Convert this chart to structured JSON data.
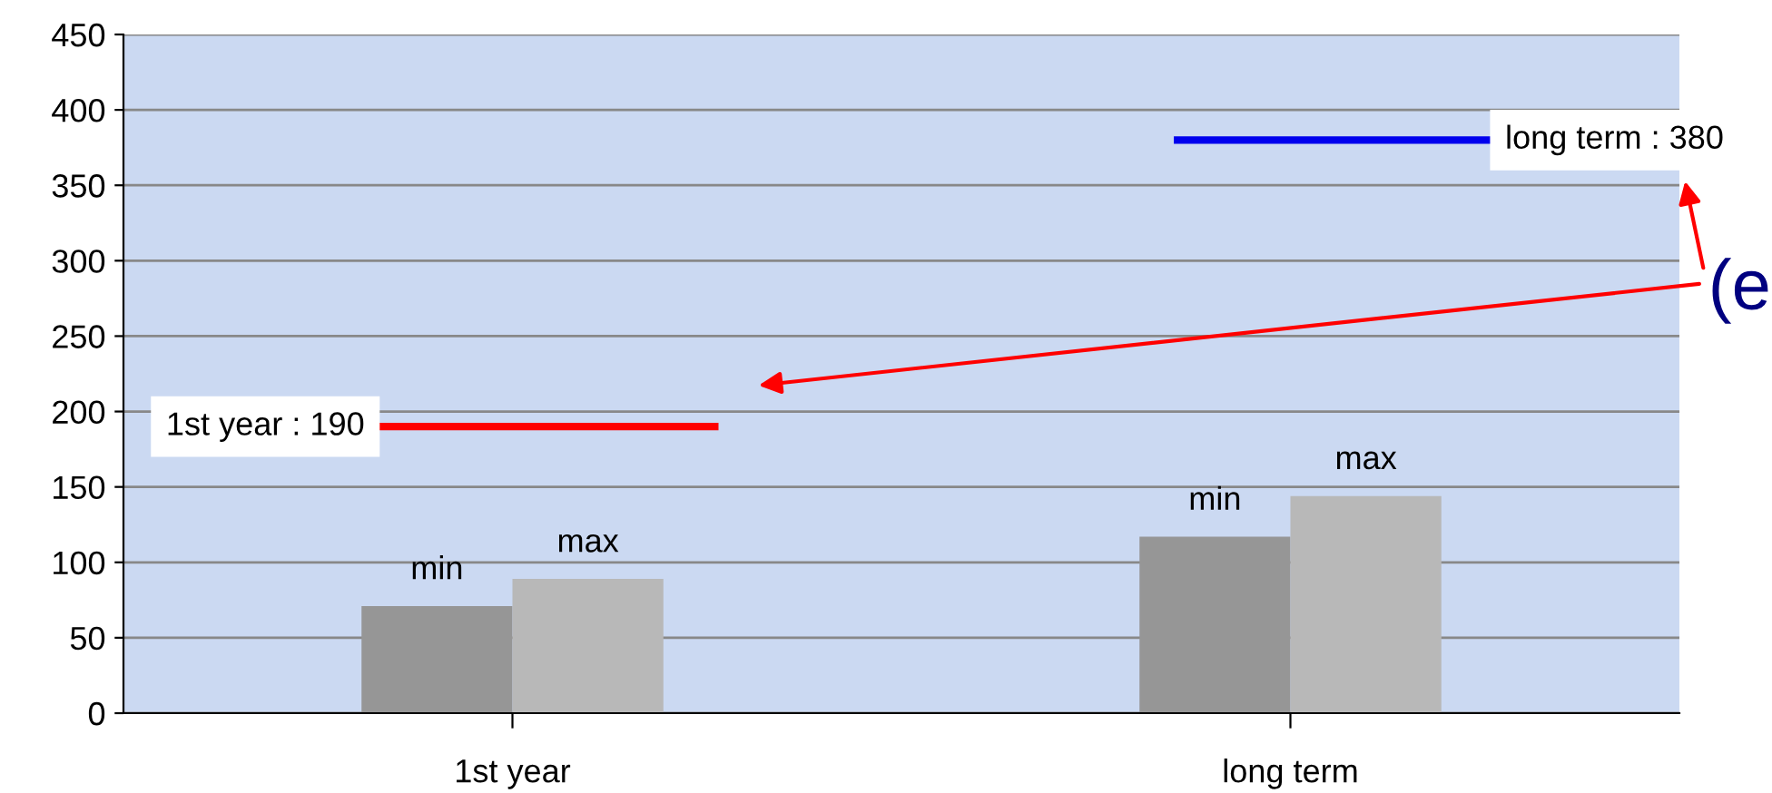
{
  "chart_data": {
    "type": "bar",
    "categories": [
      "1st year",
      "long term"
    ],
    "series": [
      {
        "name": "min",
        "color": "#969696",
        "values": [
          71,
          117
        ]
      },
      {
        "name": "max",
        "color": "#b8b8b8",
        "values": [
          89,
          144
        ]
      }
    ],
    "ylim": [
      0,
      450
    ],
    "yticks": [
      0,
      50,
      100,
      150,
      200,
      250,
      300,
      350,
      400,
      450
    ],
    "grid": "y",
    "legend": false,
    "ref_lines": [
      {
        "axis": "y",
        "value": 190,
        "label": "1st year : 190",
        "color": "#ff0000"
      },
      {
        "axis": "y",
        "value": 380,
        "label": "long term : 380",
        "color": "#0000ee"
      }
    ],
    "annotations": [
      "(e"
    ]
  }
}
